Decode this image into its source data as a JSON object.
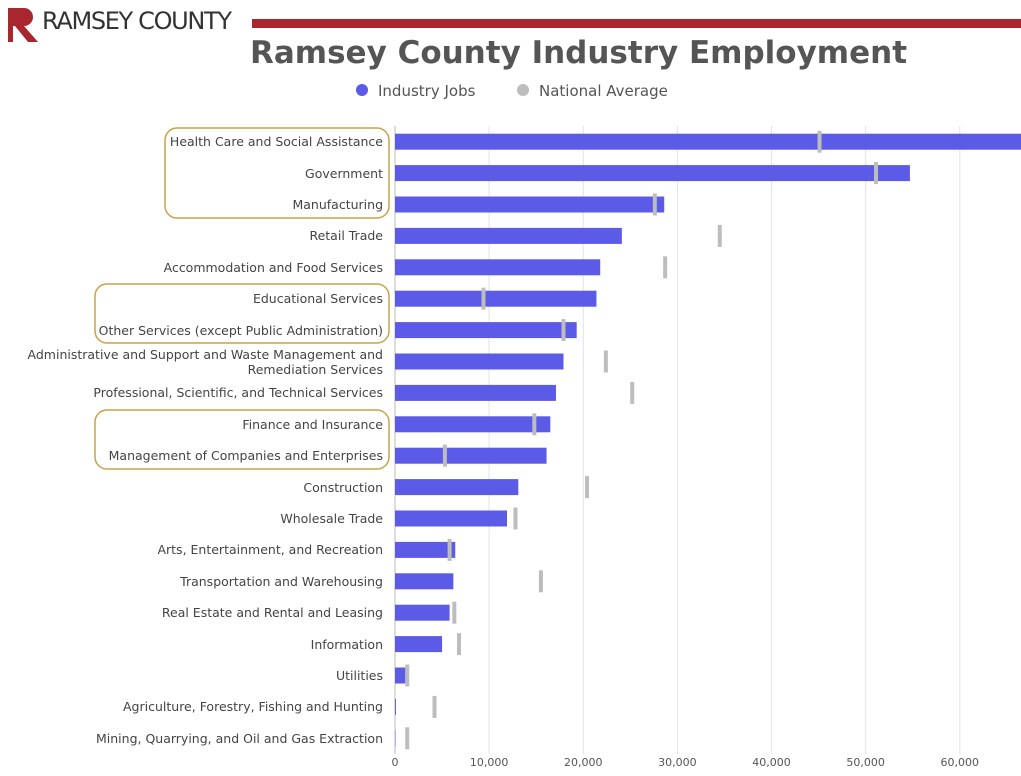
{
  "header": {
    "logo": "RAMSEY COUNTY"
  },
  "chart_data": {
    "type": "bar",
    "orientation": "horizontal",
    "title": "Ramsey County Industry Employment",
    "categories": [
      "Health Care and Social Assistance",
      "Government",
      "Manufacturing",
      "Retail Trade",
      "Accommodation and Food Services",
      "Educational Services",
      "Other Services (except Public Administration)",
      "Administrative and Support and Waste Management and Remediation Services",
      "Professional, Scientific, and Technical Services",
      "Finance and Insurance",
      "Management of Companies and Enterprises",
      "Construction",
      "Wholesale Trade",
      "Arts, Entertainment, and Recreation",
      "Transportation and Warehousing",
      "Real Estate and Rental and Leasing",
      "Information",
      "Utilities",
      "Agriculture, Forestry, Fishing and Hunting",
      "Mining, Quarrying, and Oil and Gas Extraction"
    ],
    "series": [
      {
        "name": "Industry Jobs",
        "color": "#5b5be8",
        "values": [
          68000,
          54700,
          28600,
          24100,
          21800,
          21400,
          19300,
          17900,
          17100,
          16500,
          16100,
          13100,
          11900,
          6400,
          6200,
          5800,
          5000,
          1100,
          100,
          50
        ]
      },
      {
        "name": "National Average",
        "color": "#bdbdbd",
        "values": [
          45100,
          51100,
          27600,
          34500,
          28700,
          9400,
          17900,
          22400,
          25200,
          14800,
          5300,
          20400,
          12800,
          5800,
          15500,
          6300,
          6800,
          1300,
          4200,
          1300
        ]
      }
    ],
    "xlim": [
      0,
      66500
    ],
    "xticks": [
      0,
      {
        "value": 10000,
        "label": "10,000"
      },
      {
        "value": 20000,
        "label": "20,000"
      },
      {
        "value": 30000,
        "label": "30,000"
      },
      {
        "value": 40000,
        "label": "40,000"
      },
      {
        "value": 50000,
        "label": "50,000"
      },
      {
        "value": 60000,
        "label": "60,000"
      }
    ],
    "grid": true,
    "legend": "top"
  }
}
